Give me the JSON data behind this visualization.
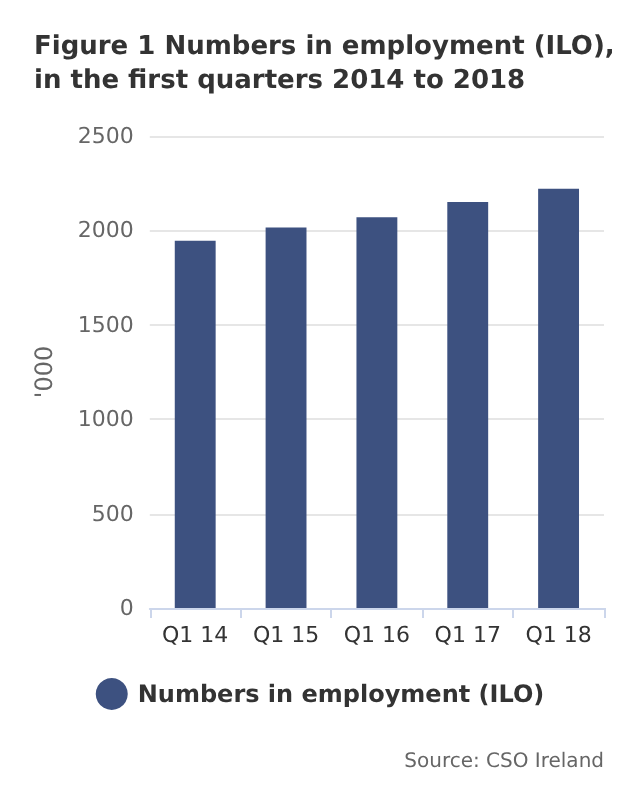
{
  "chart_data": {
    "type": "bar",
    "title": "Figure 1 Numbers in employment (ILO), in the first quarters 2014 to 2018",
    "ylabel": "'000",
    "categories": [
      "Q1 14",
      "Q1 15",
      "Q1 16",
      "Q1 17",
      "Q1 18"
    ],
    "series": [
      {
        "name": "Numbers in employment (ILO)",
        "color": "#3d5180",
        "values": [
          1945,
          2015,
          2070,
          2150,
          2220
        ]
      }
    ],
    "ylim": [
      0,
      2500
    ],
    "yticks": [
      0,
      500,
      1000,
      1500,
      2000,
      2500
    ],
    "grid": "y",
    "legend": "bottom",
    "annotations": [
      "Source: CSO Ireland"
    ]
  }
}
